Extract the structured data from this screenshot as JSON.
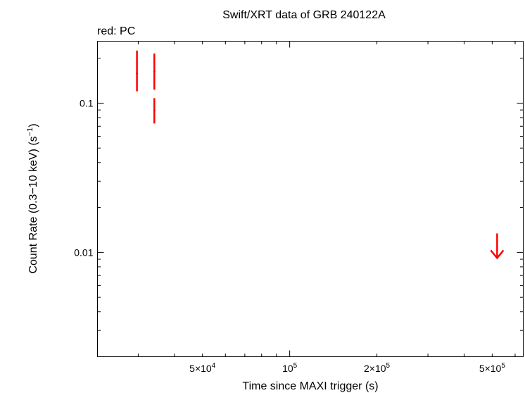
{
  "chart_data": {
    "type": "scatter",
    "title": "Swift/XRT data of GRB 240122A",
    "subtitle": "red: PC",
    "xlabel": "Time since MAXI trigger (s)",
    "ylabel_main": "Count Rate (0.3−10 keV) (s",
    "ylabel_exp": "−1",
    "ylabel_close": ")",
    "x_scale": "log",
    "y_scale": "log",
    "xlim": [
      21700,
      640000
    ],
    "ylim": [
      0.002,
      0.26
    ],
    "grid": false,
    "series_color": "#ff0000",
    "x_ticks": [
      {
        "value": 50000,
        "mant": "5×10",
        "exp": "4"
      },
      {
        "value": 100000,
        "mant": "10",
        "exp": "5"
      },
      {
        "value": 200000,
        "mant": "2×10",
        "exp": "5"
      },
      {
        "value": 500000,
        "mant": "5×10",
        "exp": "5"
      }
    ],
    "y_ticks": [
      {
        "value": 0.1,
        "label": "0.1"
      },
      {
        "value": 0.01,
        "label": "0.01"
      }
    ],
    "series": [
      {
        "mode": "PC",
        "points": [
          {
            "x": 29700,
            "y": 0.158,
            "ylo": 0.12,
            "yhi": 0.225
          },
          {
            "x": 34100,
            "y": 0.163,
            "ylo": 0.123,
            "yhi": 0.215
          },
          {
            "x": 34100,
            "y": 0.089,
            "ylo": 0.073,
            "yhi": 0.108
          }
        ],
        "upper_limits": [
          {
            "x": 520000,
            "y": 0.0134
          }
        ]
      }
    ]
  }
}
